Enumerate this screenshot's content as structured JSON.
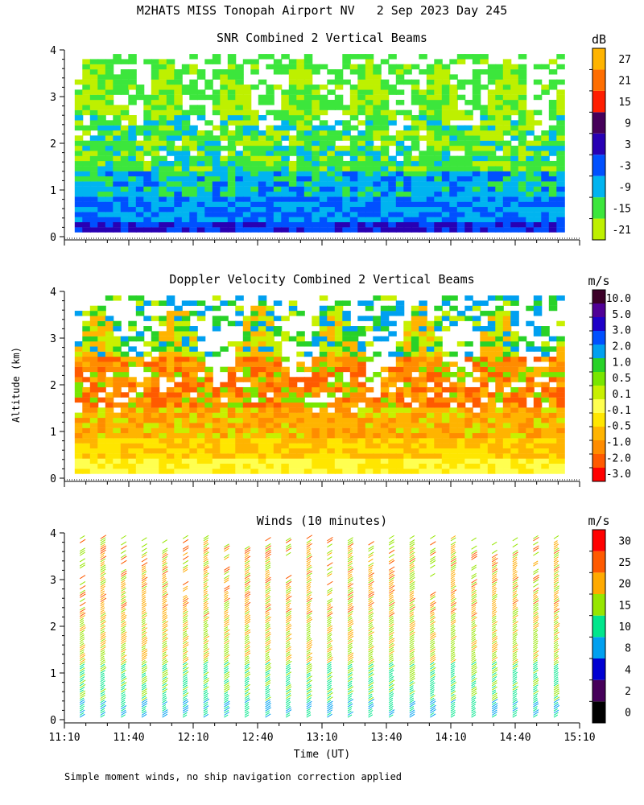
{
  "title": "M2HATS MISS Tonopah Airport NV   2 Sep 2023 Day 245",
  "footnote": "Simple moment winds, no ship navigation correction applied",
  "y_axis_label": "Altitude (km)",
  "x_axis_label": "Time (UT)",
  "colors": {
    "snr": [
      "#bef000",
      "#3ce63c",
      "#00b4f0",
      "#0050ff",
      "#2800b4",
      "#46005a",
      "#ff1e00",
      "#ff6e00",
      "#ffb400"
    ],
    "doppler": [
      "#ff0000",
      "#ff5a00",
      "#ff8c00",
      "#ffb400",
      "#ffe600",
      "#ffff50",
      "#c8f000",
      "#78e600",
      "#28d228",
      "#00a0f0",
      "#0050ff",
      "#1e00c8",
      "#500096",
      "#3c0028"
    ],
    "winds": [
      "#000000",
      "#46005a",
      "#0000d2",
      "#00a0f0",
      "#00e68c",
      "#96e600",
      "#ffaa00",
      "#ff5a00",
      "#ff0000"
    ]
  },
  "chart_data": [
    {
      "type": "heatmap",
      "title": "SNR Combined 2 Vertical Beams",
      "colorbar_unit": "dB",
      "colorbar_ticks": [
        "-21",
        "-15",
        "-9",
        "-3",
        "3",
        "9",
        "15",
        "21",
        "27"
      ],
      "xlabel": "Time (UT)",
      "ylabel": "Altitude (km)",
      "x_tick_labels": [],
      "y_tick_labels": [
        "0",
        "1",
        "2",
        "3",
        "4"
      ],
      "xlim": [
        "11:10",
        "15:10"
      ],
      "ylim": [
        0,
        4
      ],
      "profile": [
        {
          "alt_km": 0.1,
          "value_db": -3
        },
        {
          "alt_km": 0.5,
          "value_db": -6
        },
        {
          "alt_km": 1.0,
          "value_db": -9
        },
        {
          "alt_km": 1.5,
          "value_db": -15
        },
        {
          "alt_km": 2.0,
          "value_db": -15
        },
        {
          "alt_km": 3.0,
          "value_db": -21
        },
        {
          "alt_km": 3.8,
          "value_db": -21
        }
      ]
    },
    {
      "type": "heatmap",
      "title": "Doppler Velocity Combined 2 Vertical Beams",
      "colorbar_unit": "m/s",
      "colorbar_ticks": [
        "-3.0",
        "-2.0",
        "-1.0",
        "-0.5",
        "-0.1",
        "0.1",
        "0.5",
        "1.0",
        "2.0",
        "3.0",
        "5.0",
        "10.0"
      ],
      "xlabel": "Time (UT)",
      "ylabel": "Altitude (km)",
      "x_tick_labels": [],
      "y_tick_labels": [
        "0",
        "1",
        "2",
        "3",
        "4"
      ],
      "xlim": [
        "11:10",
        "15:10"
      ],
      "ylim": [
        0,
        4
      ],
      "profile": [
        {
          "alt_km": 0.2,
          "value_ms": -0.1
        },
        {
          "alt_km": 1.0,
          "value_ms": -0.5
        },
        {
          "alt_km": 2.0,
          "value_ms": -1.0
        },
        {
          "alt_km": 2.5,
          "value_ms": -0.5
        },
        {
          "alt_km": 3.3,
          "value_ms": 0.1
        }
      ]
    },
    {
      "type": "scatter",
      "title": "Winds (10 minutes)",
      "colorbar_unit": "m/s",
      "colorbar_ticks": [
        "0",
        "2",
        "4",
        "8",
        "10",
        "15",
        "20",
        "25",
        "30"
      ],
      "xlabel": "Time (UT)",
      "ylabel": "Altitude (km)",
      "x_tick_labels": [
        "11:10",
        "11:40",
        "12:10",
        "12:40",
        "13:10",
        "13:40",
        "14:10",
        "14:40",
        "15:10"
      ],
      "y_tick_labels": [
        "0",
        "1",
        "2",
        "3",
        "4"
      ],
      "xlim": [
        "11:10",
        "15:10"
      ],
      "ylim": [
        0,
        4
      ],
      "profile": [
        {
          "alt_km": 0.2,
          "speed_ms": 10
        },
        {
          "alt_km": 1.0,
          "speed_ms": 15
        },
        {
          "alt_km": 2.0,
          "speed_ms": 18
        },
        {
          "alt_km": 3.0,
          "speed_ms": 22
        },
        {
          "alt_km": 3.8,
          "speed_ms": 20
        }
      ]
    }
  ]
}
